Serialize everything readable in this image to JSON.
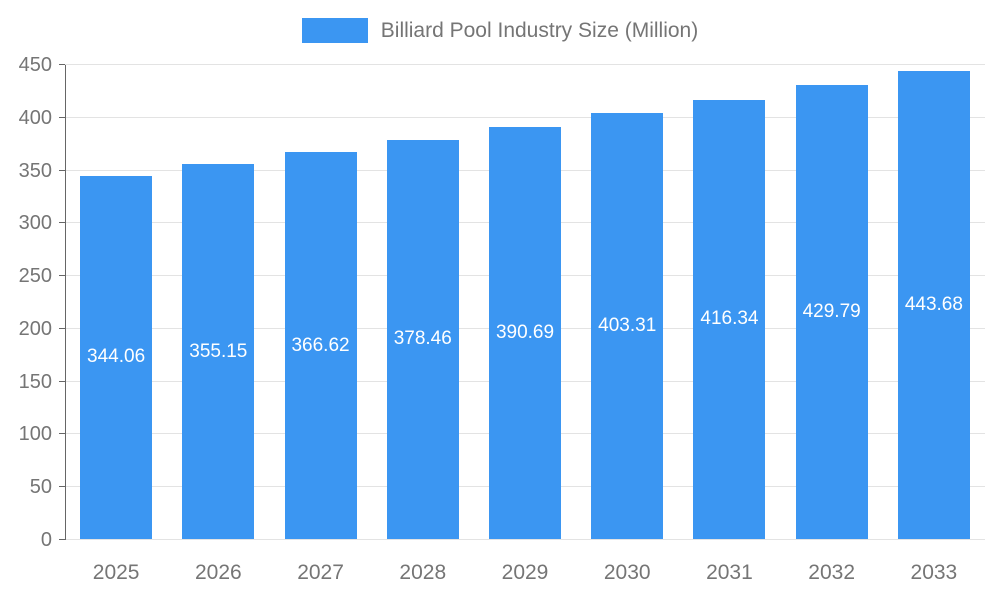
{
  "chart_data": {
    "type": "bar",
    "title": "Billiard Pool Industry Size (Million)",
    "categories": [
      "2025",
      "2026",
      "2027",
      "2028",
      "2029",
      "2030",
      "2031",
      "2032",
      "2033"
    ],
    "values": [
      344.06,
      355.15,
      366.62,
      378.46,
      390.69,
      403.31,
      416.34,
      429.79,
      443.68
    ],
    "value_labels": [
      "344.06",
      "355.15",
      "366.62",
      "378.46",
      "390.69",
      "403.31",
      "416.34",
      "429.79",
      "443.68"
    ],
    "xlabel": "",
    "ylabel": "",
    "ylim": [
      0,
      450
    ],
    "ytick_interval": 50,
    "ytick_labels": [
      "0",
      "50",
      "100",
      "150",
      "200",
      "250",
      "300",
      "350",
      "400",
      "450"
    ],
    "grid": true,
    "legend_position": "top",
    "colors": {
      "bar": "#3B96F2",
      "value_label": "#ffffff",
      "axis_text": "#757575",
      "axis_line": "#666666",
      "gridline": "#e3e3e3"
    }
  }
}
